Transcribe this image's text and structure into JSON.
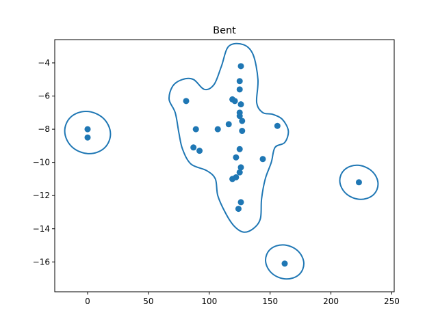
{
  "chart_data": {
    "type": "scatter",
    "title": "Bent",
    "xlabel": "",
    "ylabel": "",
    "xlim": [
      -27,
      252
    ],
    "ylim": [
      -17.8,
      -2.6
    ],
    "x_ticks": [
      0,
      50,
      100,
      150,
      200,
      250
    ],
    "y_ticks": [
      -4,
      -6,
      -8,
      -10,
      -12,
      -14,
      -16
    ],
    "x_tick_labels": [
      "0",
      "50",
      "100",
      "150",
      "200",
      "250"
    ],
    "y_tick_labels": [
      "−4",
      "−6",
      "−8",
      "−10",
      "−12",
      "−14",
      "−16"
    ],
    "grid": false,
    "colors": {
      "series": "#1f77b4"
    },
    "series": [
      {
        "points": [
          [
            0,
            -8.0
          ],
          [
            0,
            -8.5
          ],
          [
            126,
            -4.2
          ],
          [
            125,
            -5.1
          ],
          [
            125,
            -5.6
          ],
          [
            81,
            -6.3
          ],
          [
            119,
            -6.2
          ],
          [
            121,
            -6.3
          ],
          [
            126,
            -6.5
          ],
          [
            125,
            -7.0
          ],
          [
            125,
            -7.2
          ],
          [
            127,
            -7.5
          ],
          [
            116,
            -7.7
          ],
          [
            127,
            -8.1
          ],
          [
            107,
            -8.0
          ],
          [
            89,
            -8.0
          ],
          [
            156,
            -7.8
          ],
          [
            87,
            -9.1
          ],
          [
            92,
            -9.3
          ],
          [
            125,
            -9.2
          ],
          [
            122,
            -9.7
          ],
          [
            144,
            -9.8
          ],
          [
            126,
            -10.3
          ],
          [
            125,
            -10.6
          ],
          [
            122,
            -10.9
          ],
          [
            119,
            -11.0
          ],
          [
            223,
            -11.2
          ],
          [
            126,
            -12.4
          ],
          [
            124,
            -12.8
          ],
          [
            162,
            -16.1
          ]
        ]
      }
    ],
    "contours": [
      {
        "points": [
          [
            128,
            -2.9
          ],
          [
            136,
            -3.5
          ],
          [
            140,
            -5.0
          ],
          [
            139,
            -6.4
          ],
          [
            144,
            -7.0
          ],
          [
            152,
            -7.1
          ],
          [
            160,
            -7.4
          ],
          [
            165,
            -8.1
          ],
          [
            162,
            -8.8
          ],
          [
            154,
            -9.1
          ],
          [
            151,
            -10.0
          ],
          [
            146,
            -11.0
          ],
          [
            143,
            -12.2
          ],
          [
            142,
            -13.4
          ],
          [
            136,
            -14.0
          ],
          [
            128,
            -14.2
          ],
          [
            120,
            -13.8
          ],
          [
            113,
            -13.0
          ],
          [
            107,
            -12.0
          ],
          [
            105,
            -11.0
          ],
          [
            98,
            -10.5
          ],
          [
            85,
            -10.1
          ],
          [
            78,
            -9.2
          ],
          [
            75,
            -8.2
          ],
          [
            72,
            -7.0
          ],
          [
            67,
            -6.2
          ],
          [
            70,
            -5.4
          ],
          [
            78,
            -5.0
          ],
          [
            87,
            -5.0
          ],
          [
            96,
            -5.6
          ],
          [
            104,
            -5.3
          ],
          [
            110,
            -4.2
          ],
          [
            116,
            -3.0
          ]
        ]
      },
      {
        "ellipse": {
          "cx": 0,
          "cy": -8.2,
          "rx": 19,
          "ry": 1.25
        }
      },
      {
        "ellipse": {
          "cx": 223,
          "cy": -11.2,
          "rx": 16,
          "ry": 1.0
        }
      },
      {
        "ellipse": {
          "cx": 162,
          "cy": -16.0,
          "rx": 16,
          "ry": 1.0
        }
      }
    ]
  }
}
